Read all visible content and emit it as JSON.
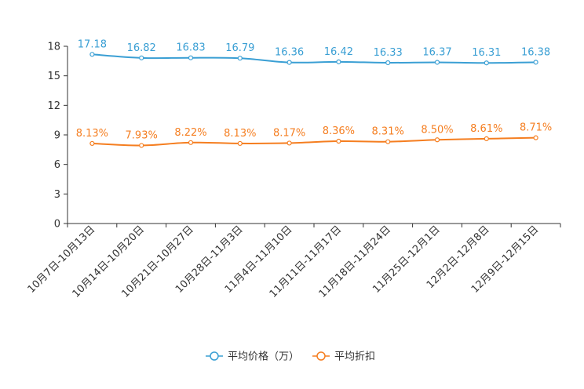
{
  "chart_data": {
    "type": "line",
    "title": "",
    "xlabel": "",
    "ylabel": "",
    "ylim": [
      0,
      18
    ],
    "yticks": [
      0,
      3,
      6,
      9,
      12,
      15,
      18
    ],
    "grid": false,
    "legend_position": "bottom-center",
    "categories": [
      "10月7日-10月13日",
      "10月14日-10月20日",
      "10月21日-10月27日",
      "10月28日-11月3日",
      "11月4日-11月10日",
      "11月11日-11月17日",
      "11月18日-11月24日",
      "11月25日-12月1日",
      "12月2日-12月8日",
      "12月9日-12月15日"
    ],
    "series": [
      {
        "name": "平均价格（万）",
        "color": "#3A9FD4",
        "values": [
          17.18,
          16.82,
          16.83,
          16.79,
          16.36,
          16.42,
          16.33,
          16.37,
          16.31,
          16.38
        ],
        "labels": [
          "17.18",
          "16.82",
          "16.83",
          "16.79",
          "16.36",
          "16.42",
          "16.33",
          "16.37",
          "16.31",
          "16.38"
        ]
      },
      {
        "name": "平均折扣",
        "color": "#F57E20",
        "values": [
          8.13,
          7.93,
          8.22,
          8.13,
          8.17,
          8.36,
          8.31,
          8.5,
          8.61,
          8.71
        ],
        "labels": [
          "8.13%",
          "7.93%",
          "8.22%",
          "8.13%",
          "8.17%",
          "8.36%",
          "8.31%",
          "8.50%",
          "8.61%",
          "8.71%"
        ]
      }
    ]
  }
}
